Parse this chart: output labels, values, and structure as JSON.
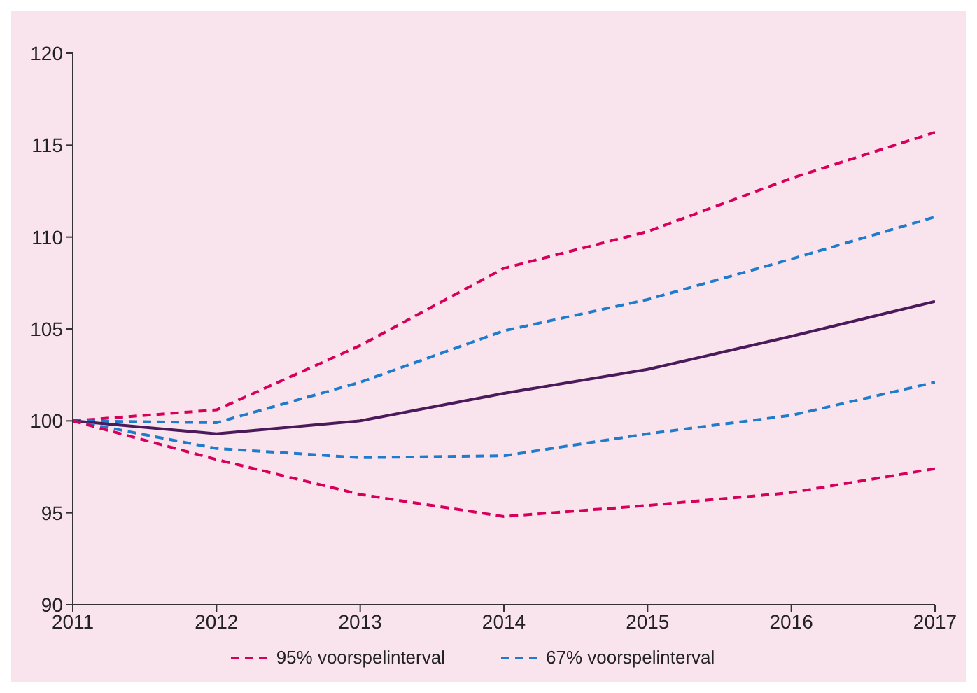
{
  "chart_data": {
    "type": "line",
    "x": [
      2011,
      2012,
      2013,
      2014,
      2015,
      2016,
      2017
    ],
    "xlim": [
      2011,
      2017
    ],
    "xticks": [
      2011,
      2012,
      2013,
      2014,
      2015,
      2016,
      2017
    ],
    "ylim": [
      90,
      120
    ],
    "yticks": [
      90,
      95,
      100,
      105,
      110,
      115,
      120
    ],
    "grid": false,
    "legend": "bottom",
    "marker": "none",
    "series": [
      {
        "name": "95% voorspelinterval",
        "color": "#d6005b",
        "line_style": "dashed",
        "values": [
          100,
          100.6,
          104.1,
          108.3,
          110.3,
          113.2,
          115.7
        ]
      },
      {
        "name": "67% voorspelinterval",
        "color": "#1f7ccc",
        "line_style": "dashed",
        "values": [
          100,
          99.9,
          102.1,
          104.9,
          106.6,
          108.8,
          111.1
        ]
      },
      {
        "color": "#4a1a5a",
        "line_style": "solid",
        "values": [
          100,
          99.3,
          100,
          101.5,
          102.8,
          104.6,
          106.5
        ]
      },
      {
        "color": "#1f7ccc",
        "line_style": "dashed",
        "values": [
          100,
          98.5,
          98,
          98.1,
          99.3,
          100.3,
          102.1
        ]
      },
      {
        "color": "#d6005b",
        "line_style": "dashed",
        "values": [
          100,
          97.9,
          96,
          94.8,
          95.4,
          96.1,
          97.4
        ]
      }
    ]
  }
}
